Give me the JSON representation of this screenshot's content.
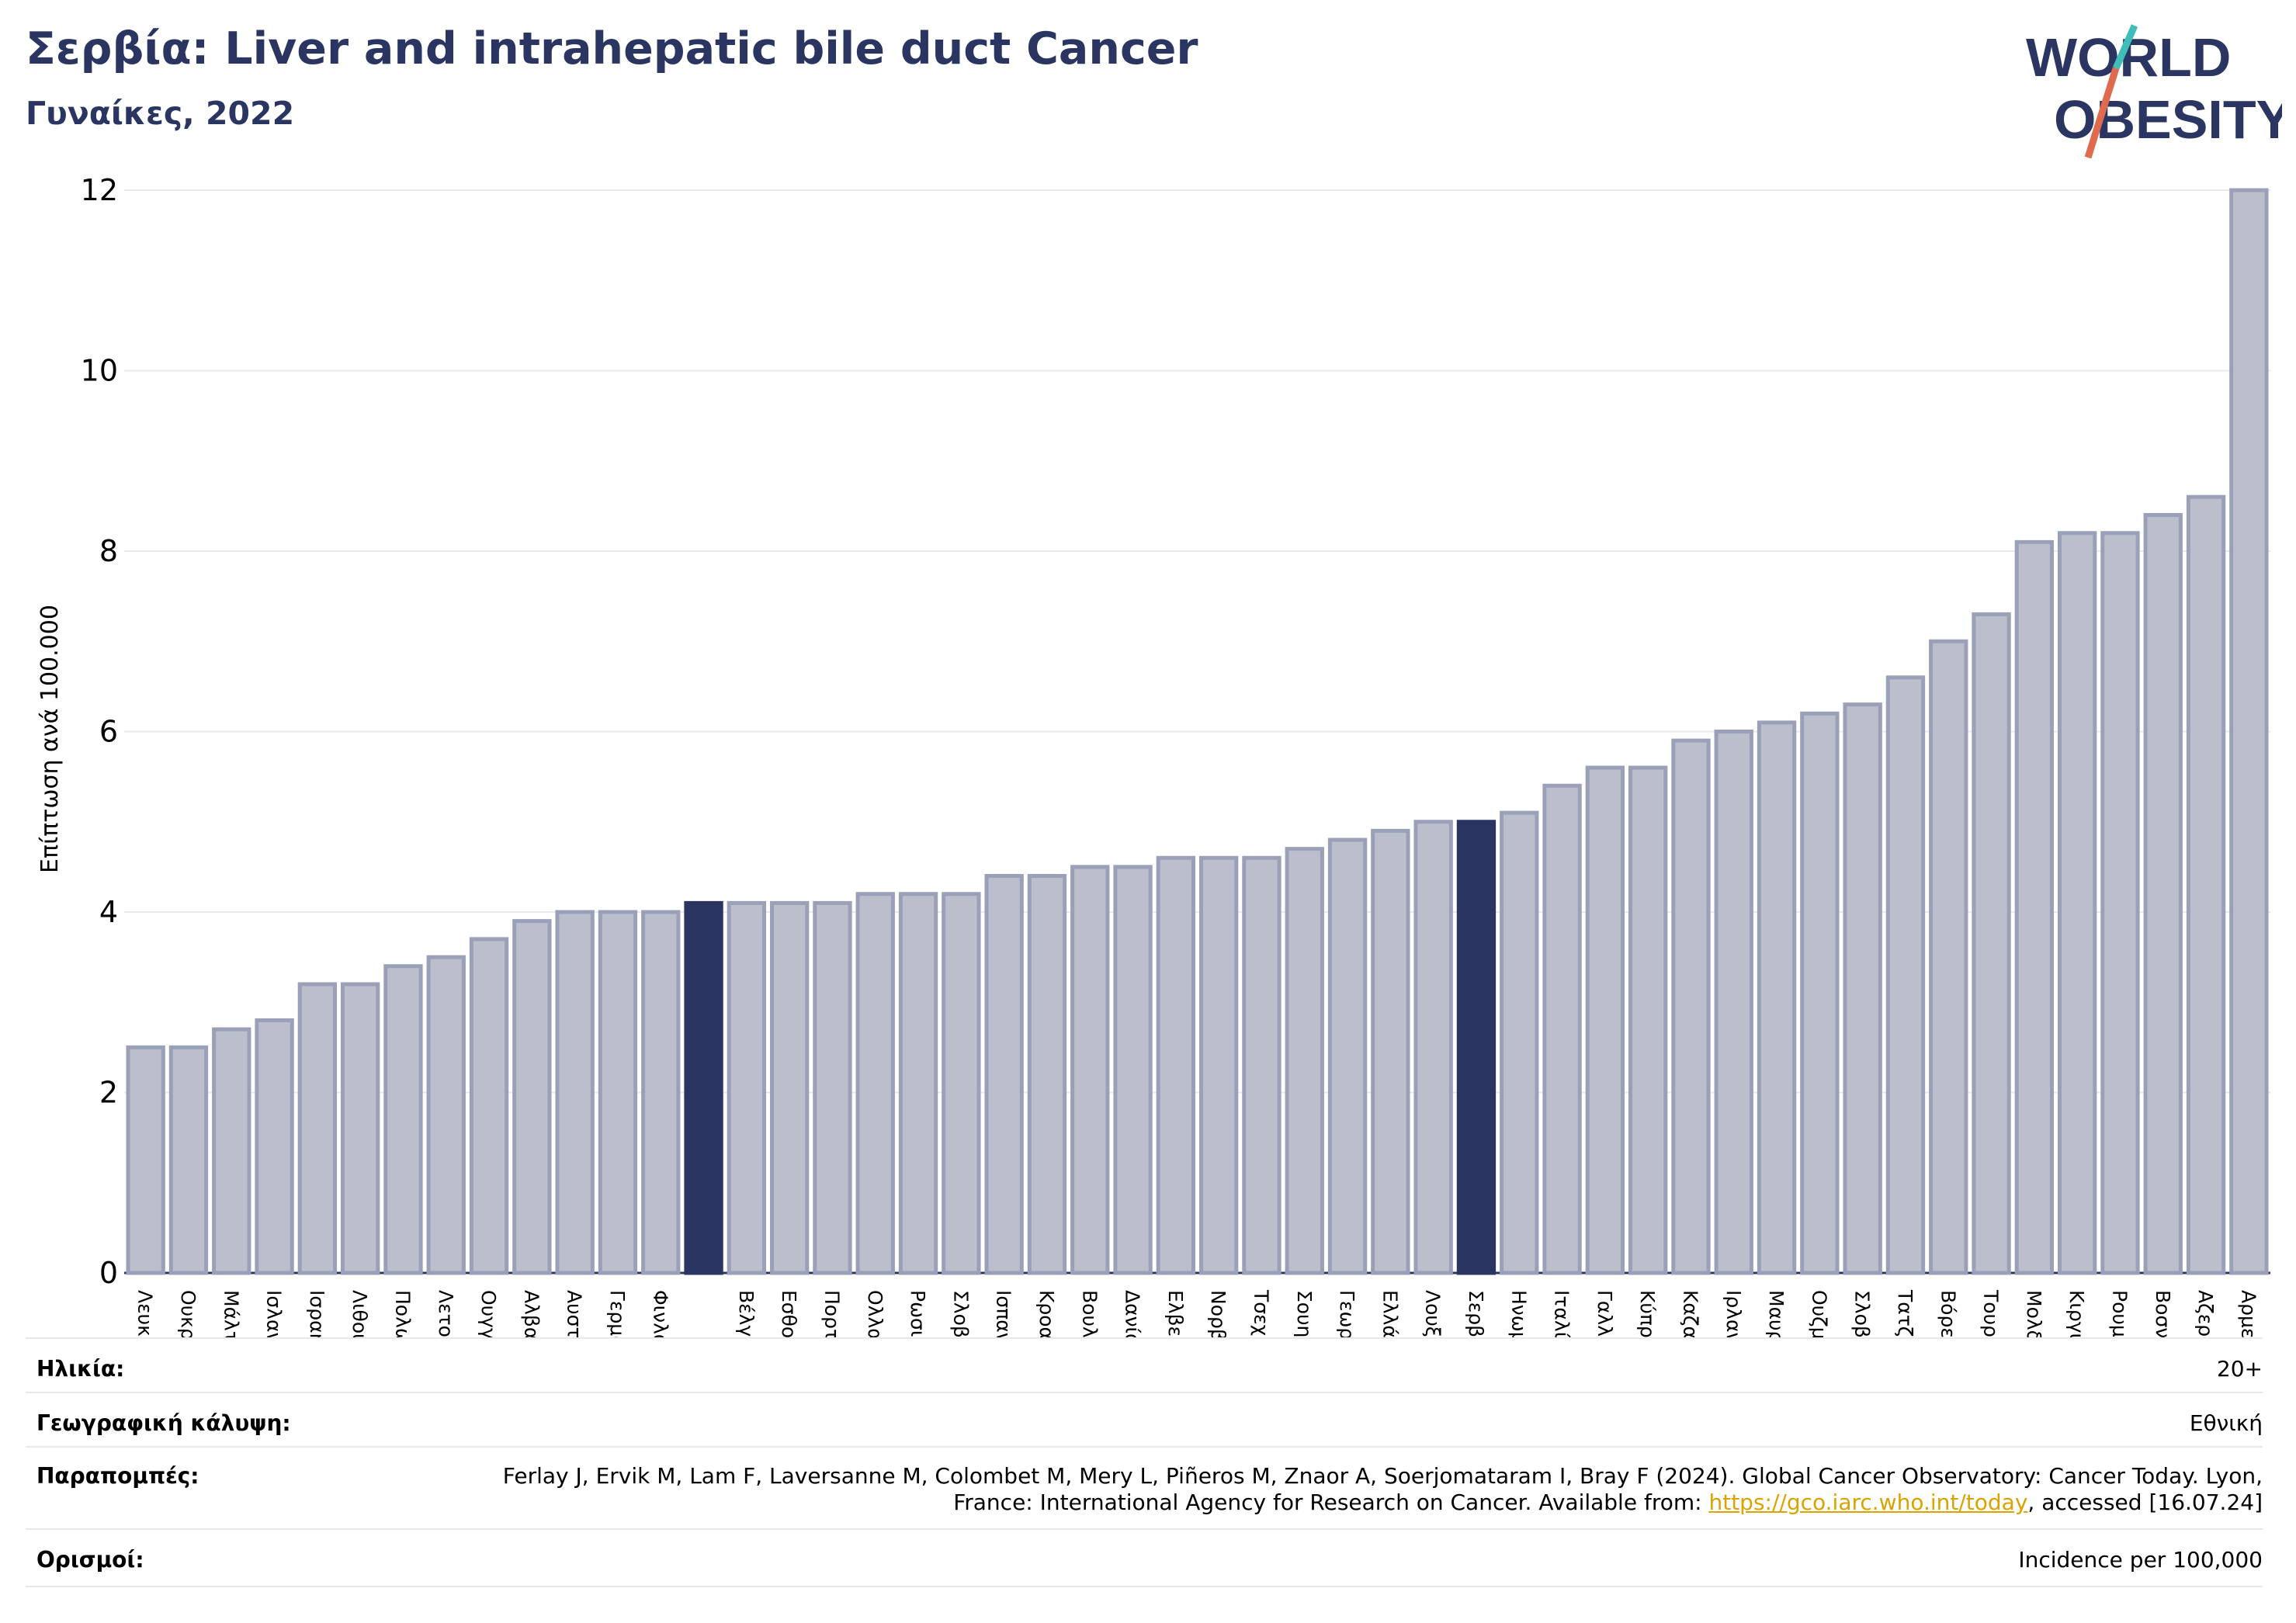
{
  "header": {
    "title": "Σερβία: Liver and intrahepatic bile duct Cancer",
    "subtitle": "Γυναίκες, 2022"
  },
  "logo": {
    "line1": "WORLD",
    "line2": "OBESITY"
  },
  "colors": {
    "bar": "#bbbfcc",
    "bar_stroke": "#9aa0b8",
    "highlight": "#2a3561",
    "title": "#2a3561",
    "grid": "#e9eaf0",
    "link": "#d9a400"
  },
  "chart_data": {
    "type": "bar",
    "ylabel": "Επίπτωση ανά 100.000",
    "ylim": [
      0,
      12
    ],
    "yticks": [
      0,
      2,
      4,
      6,
      8,
      10,
      12
    ],
    "grid": true,
    "categories": [
      "Λευκορωσία",
      "Ουκρανία",
      "Μάλτα",
      "Ισλανδία",
      "Ισραήλ",
      "Λιθουανία",
      "Πολωνία",
      "Λετονία",
      "Ουγγαρία",
      "Αλβανία",
      "Αυστρία",
      "Γερμανία",
      "Φινλανδία",
      "",
      "Βέλγιο",
      "Εσθονία",
      "Πορτογαλία",
      "Ολλανδία",
      "Ρωσική Ομοσπονδία",
      "Σλοβακία",
      "Ισπανία",
      "Κροατία",
      "Βουλγαρία",
      "Δανία",
      "Ελβετία",
      "Νορβηγία",
      "Τσεχία",
      "Σουηδία",
      "Γεωργία",
      "Ελλάδα",
      "Λουξεμβούργο",
      "Σερβία",
      "Ηνωμένο Βασίλειο",
      "Ιταλία",
      "Γαλλία",
      "Κύπρος",
      "Καζακστάν",
      "Ιρλανδία",
      "Μαυροβούνιο",
      "Ουζμπεκιστάν",
      "Σλοβενία",
      "Τατζικιστάν",
      "Βόρεια Μακεδονία",
      "Τουρκμενιστάν",
      "Μολδαβία",
      "Κιργιστάν",
      "Ρουμανία",
      "Βοσνία και Ερζεγοβίνη",
      "Αζερμπαϊτζάν",
      "Αρμενία"
    ],
    "values": [
      2.5,
      2.5,
      2.7,
      2.8,
      3.2,
      3.2,
      3.4,
      3.5,
      3.7,
      3.9,
      4.0,
      4.0,
      4.0,
      4.1,
      4.1,
      4.1,
      4.1,
      4.2,
      4.2,
      4.2,
      4.4,
      4.4,
      4.5,
      4.5,
      4.6,
      4.6,
      4.6,
      4.7,
      4.8,
      4.9,
      5.0,
      5.0,
      5.1,
      5.4,
      5.6,
      5.6,
      5.9,
      6.0,
      6.1,
      6.2,
      6.3,
      6.6,
      7.0,
      7.3,
      8.1,
      8.2,
      8.2,
      8.4,
      8.6,
      12.0
    ],
    "highlighted": [
      13,
      31
    ]
  },
  "info": {
    "age_label": "Ηλικία:",
    "age_value": "20+",
    "coverage_label": "Γεωγραφική κάλυψη:",
    "coverage_value": "Εθνική",
    "refs_label": "Παραπομπές:",
    "refs_text_1": "Ferlay J, Ervik M, Lam F, Laversanne M, Colombet M, Mery L, Piñeros M, Znaor A, Soerjomataram I, Bray F (2024). Global Cancer Observatory: Cancer Today. Lyon, France: International Agency for Research on Cancer. Available from: ",
    "refs_link": "https://gco.iarc.who.int/today",
    "refs_text_2": ", accessed [16.07.24]",
    "defs_label": "Ορισμοί:",
    "defs_value": "Incidence per 100,000"
  }
}
